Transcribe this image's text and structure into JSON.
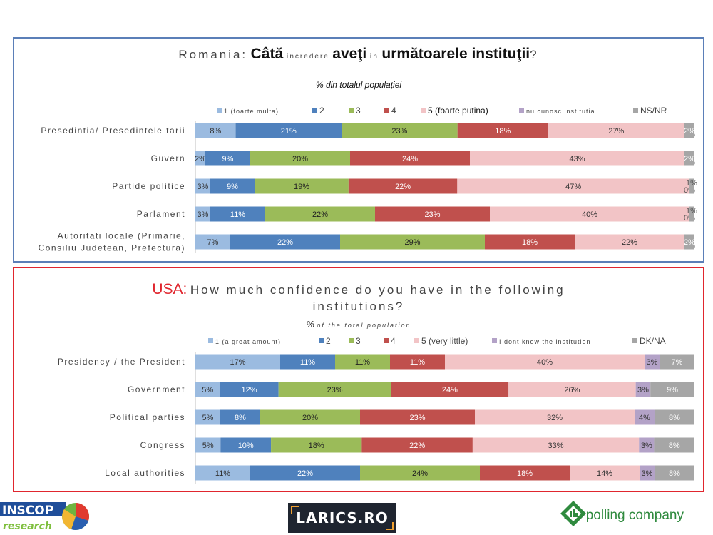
{
  "logos": {
    "inscop_top": "INSCOP",
    "inscop_bottom": "research",
    "larics": "LARICS.RO",
    "polling": "the polling company"
  },
  "colors": {
    "c1": "#9bbbe0",
    "c2": "#4f81bd",
    "c3": "#9bbb59",
    "c4": "#c0504d",
    "c5": "#f2c4c6",
    "cunknown": "#b3a2c7",
    "cdk": "#a6a6a6",
    "ro_border": "#5b7fb8",
    "us_border": "#e0262e"
  },
  "chart_data": [
    {
      "type": "bar",
      "stacked": true,
      "orientation": "horizontal",
      "title_prefix": "Romania:",
      "title_question_parts": [
        "Câtă",
        "încredere",
        "aveţi",
        "în",
        "următoarele instituţii",
        "?"
      ],
      "subtitle": "% din totalul populației",
      "legend": [
        "1 (foarte multa)",
        "2",
        "3",
        "4",
        "5 (foarte puțina)",
        "nu cunosc institutia",
        "NS/NR"
      ],
      "legend_placement": "top",
      "categories": [
        "Presedintia/ Presedintele tarii",
        "Guvern",
        "Partide politice",
        "Parlament",
        "Autoritati locale (Primarie, Consiliu Judetean, Prefectura)"
      ],
      "series": [
        {
          "name": "1 (foarte multa)",
          "values": [
            8,
            2,
            3,
            3,
            7
          ]
        },
        {
          "name": "2",
          "values": [
            21,
            9,
            9,
            11,
            22
          ]
        },
        {
          "name": "3",
          "values": [
            23,
            20,
            19,
            22,
            29
          ]
        },
        {
          "name": "4",
          "values": [
            18,
            24,
            22,
            23,
            18
          ]
        },
        {
          "name": "5 (foarte puțina)",
          "values": [
            27,
            43,
            47,
            40,
            22
          ]
        },
        {
          "name": "nu cunosc institutia",
          "values": [
            0,
            0,
            0,
            0,
            0
          ]
        },
        {
          "name": "NS/NR",
          "values": [
            2,
            2,
            1,
            1,
            2
          ]
        }
      ],
      "data_labels": [
        [
          "8%",
          "21%",
          "23%",
          "18%",
          "27%",
          "0%",
          "2%"
        ],
        [
          "2%",
          "9%",
          "20%",
          "24%",
          "43%",
          "0%",
          "2%"
        ],
        [
          "3%",
          "9%",
          "19%",
          "22%",
          "47%",
          "0%",
          "1%"
        ],
        [
          "3%",
          "11%",
          "22%",
          "23%",
          "40%",
          "0%",
          "1%"
        ],
        [
          "7%",
          "22%",
          "29%",
          "18%",
          "22%",
          "0%",
          "2%"
        ]
      ]
    },
    {
      "type": "bar",
      "stacked": true,
      "orientation": "horizontal",
      "title_prefix": "USA:",
      "title_line1": "How much confidence do you have in the following",
      "title_line2": "institutions?",
      "subtitle_pct": "%",
      "subtitle": "of the total population",
      "legend": [
        "1 (a great amount)",
        "2",
        "3",
        "4",
        "5 (very little)",
        "I dont know the institution",
        "DK/NA"
      ],
      "legend_placement": "top",
      "categories": [
        "Presidency / the President",
        "Government",
        "Political parties",
        "Congress",
        "Local authorities"
      ],
      "series": [
        {
          "name": "1 (a great amount)",
          "values": [
            17,
            5,
            5,
            5,
            11
          ]
        },
        {
          "name": "2",
          "values": [
            11,
            12,
            8,
            10,
            22
          ]
        },
        {
          "name": "3",
          "values": [
            11,
            23,
            20,
            18,
            24
          ]
        },
        {
          "name": "4",
          "values": [
            11,
            24,
            23,
            22,
            18
          ]
        },
        {
          "name": "5 (very little)",
          "values": [
            40,
            26,
            32,
            33,
            14
          ]
        },
        {
          "name": "I dont know the institution",
          "values": [
            3,
            3,
            4,
            3,
            3
          ]
        },
        {
          "name": "DK/NA",
          "values": [
            7,
            9,
            8,
            8,
            8
          ]
        }
      ],
      "data_labels": [
        [
          "17%",
          "11%",
          "11%",
          "11%",
          "40%",
          "3%",
          "7%"
        ],
        [
          "5%",
          "12%",
          "23%",
          "24%",
          "26%",
          "3%",
          "9%"
        ],
        [
          "5%",
          "8%",
          "20%",
          "23%",
          "32%",
          "4%",
          "8%"
        ],
        [
          "5%",
          "10%",
          "18%",
          "22%",
          "33%",
          "3%",
          "8%"
        ],
        [
          "11%",
          "22%",
          "24%",
          "18%",
          "14%",
          "3%",
          "8%"
        ]
      ]
    }
  ]
}
